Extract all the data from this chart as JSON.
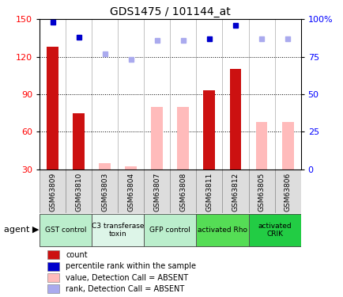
{
  "title": "GDS1475 / 101144_at",
  "samples": [
    "GSM63809",
    "GSM63810",
    "GSM63803",
    "GSM63804",
    "GSM63807",
    "GSM63808",
    "GSM63811",
    "GSM63812",
    "GSM63805",
    "GSM63806"
  ],
  "agents": [
    {
      "label": "GST control",
      "cols": [
        0,
        1
      ],
      "color": "#bbeecc"
    },
    {
      "label": "C3 transferase\ntoxin",
      "cols": [
        2,
        3
      ],
      "color": "#ddf5e8"
    },
    {
      "label": "GFP control",
      "cols": [
        4,
        5
      ],
      "color": "#bbeecc"
    },
    {
      "label": "activated Rho",
      "cols": [
        6,
        7
      ],
      "color": "#55dd55"
    },
    {
      "label": "activated\nCRIK",
      "cols": [
        8,
        9
      ],
      "color": "#22cc44"
    }
  ],
  "count_values": [
    128,
    75,
    null,
    null,
    null,
    null,
    93,
    110,
    null,
    null
  ],
  "count_absent_values": [
    null,
    null,
    35,
    32,
    80,
    80,
    null,
    null,
    68,
    68
  ],
  "percentile_values": [
    98,
    88,
    null,
    null,
    null,
    null,
    87,
    96,
    null,
    null
  ],
  "percentile_absent_values": [
    null,
    null,
    77,
    73,
    86,
    86,
    null,
    null,
    87,
    87
  ],
  "ylim_left": [
    30,
    150
  ],
  "ylim_right": [
    0,
    100
  ],
  "yticks_left": [
    30,
    60,
    90,
    120,
    150
  ],
  "yticks_right": [
    0,
    25,
    50,
    75,
    100
  ],
  "ytick_labels_right": [
    "0",
    "25",
    "50",
    "75",
    "100%"
  ],
  "bar_color": "#cc1111",
  "bar_absent_color": "#ffbbbb",
  "dot_color": "#0000cc",
  "dot_absent_color": "#aaaaee",
  "background_color": "#ffffff",
  "grid_color": "#000000"
}
